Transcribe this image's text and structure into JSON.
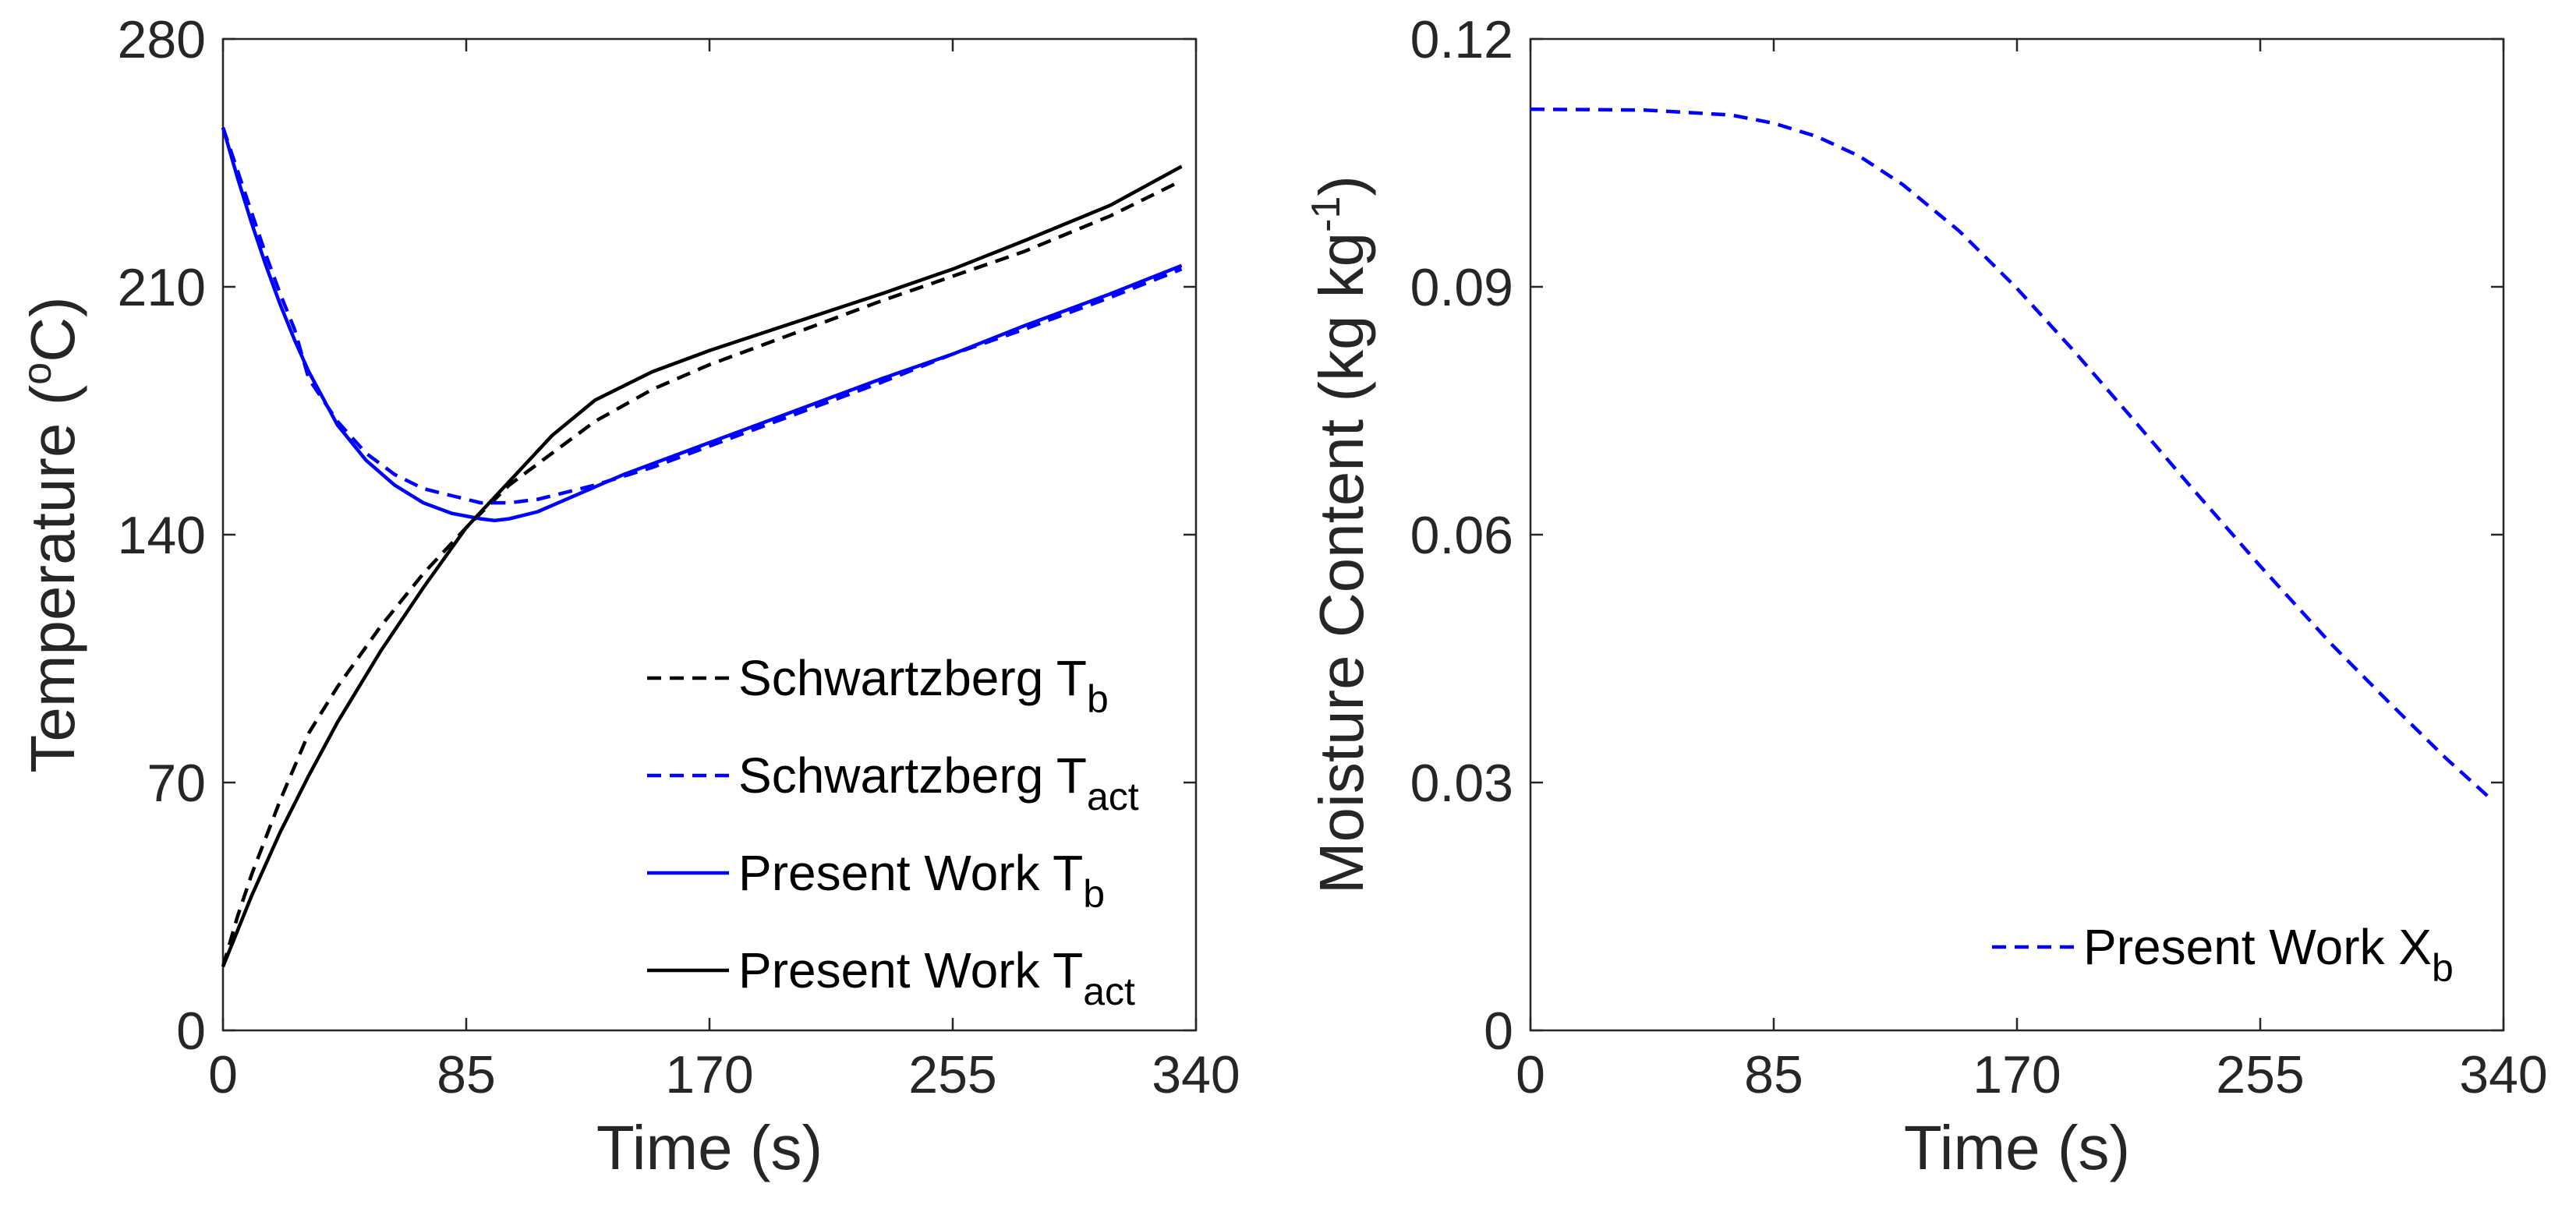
{
  "chart_data": [
    {
      "type": "line",
      "xlabel": "Time (s)",
      "ylabel_text": "Temperature (",
      "ylabel_sup": "o",
      "ylabel_unit": "C)",
      "xlim": [
        0,
        340
      ],
      "ylim": [
        0,
        280
      ],
      "xticks": [
        0,
        85,
        170,
        255,
        340
      ],
      "yticks": [
        0,
        70,
        140,
        210,
        280
      ],
      "grid": false,
      "legend_position": "bottom-right",
      "series": [
        {
          "name": "Schwartzberg T",
          "subscript": "b",
          "color": "#000000",
          "dash": "dashed",
          "x": [
            0,
            5,
            10,
            20,
            30,
            40,
            55,
            70,
            85,
            100,
            115,
            130,
            150,
            170,
            200,
            230,
            255,
            280,
            310,
            335
          ],
          "y": [
            18,
            32,
            44,
            65,
            84,
            97,
            114,
            129,
            142,
            154,
            163,
            172,
            181,
            188,
            197,
            206,
            213,
            220,
            230,
            240
          ]
        },
        {
          "name": "Schwartzberg T",
          "subscript": "act",
          "color": "#0000FF",
          "dash": "dashed",
          "x": [
            0,
            5,
            10,
            15,
            20,
            25,
            30,
            40,
            50,
            60,
            70,
            80,
            90,
            100,
            110,
            130,
            150,
            170,
            200,
            230,
            255,
            280,
            310,
            335
          ],
          "y": [
            255,
            243,
            231,
            219,
            208,
            198,
            184,
            172,
            163,
            157,
            153,
            151,
            149,
            149,
            150,
            154,
            159,
            165,
            174,
            183,
            191,
            198,
            207,
            215
          ]
        },
        {
          "name": "Present Work T",
          "subscript": "b",
          "color": "#0000FF",
          "dash": "solid",
          "x": [
            0,
            5,
            10,
            15,
            20,
            25,
            30,
            40,
            50,
            60,
            70,
            80,
            90,
            95,
            100,
            110,
            120,
            140,
            170,
            200,
            230,
            255,
            280,
            310,
            335
          ],
          "y": [
            255,
            241,
            228,
            216,
            205,
            195,
            186,
            171,
            161,
            154,
            149,
            146,
            144.5,
            144,
            144.5,
            146.5,
            150,
            157,
            166,
            175,
            184,
            191,
            199,
            208,
            216
          ]
        },
        {
          "name": "Present Work T",
          "subscript": "act",
          "color": "#000000",
          "dash": "solid",
          "x": [
            0,
            10,
            20,
            30,
            40,
            55,
            70,
            85,
            100,
            115,
            130,
            150,
            170,
            200,
            230,
            255,
            280,
            310,
            335
          ],
          "y": [
            18,
            38,
            56,
            72,
            87,
            107,
            125,
            142,
            155,
            168,
            178,
            186,
            192,
            200,
            208,
            215,
            223,
            233,
            244
          ]
        }
      ]
    },
    {
      "type": "line",
      "xlabel": "Time (s)",
      "ylabel_text": "Moisture Content (kg kg",
      "ylabel_sup": "-1",
      "ylabel_unit": ")",
      "xlim": [
        0,
        340
      ],
      "ylim": [
        0,
        0.12
      ],
      "xticks": [
        0,
        85,
        170,
        255,
        340
      ],
      "yticks": [
        0,
        0.03,
        0.06,
        0.09,
        0.12
      ],
      "ytick_labels": [
        "0",
        "0.03",
        "0.06",
        "0.09",
        "0.12"
      ],
      "grid": false,
      "legend_position": "bottom-right",
      "series": [
        {
          "name": "Present Work X",
          "subscript": "b",
          "color": "#0000FF",
          "dash": "dashed",
          "x": [
            0,
            40,
            70,
            85,
            100,
            115,
            130,
            150,
            170,
            190,
            210,
            230,
            255,
            280,
            300,
            320,
            335
          ],
          "y": [
            0.1115,
            0.1114,
            0.1108,
            0.1098,
            0.1082,
            0.1058,
            0.1024,
            0.0967,
            0.0898,
            0.0822,
            0.0742,
            0.0661,
            0.0562,
            0.0467,
            0.0397,
            0.0329,
            0.0282
          ]
        }
      ]
    }
  ]
}
